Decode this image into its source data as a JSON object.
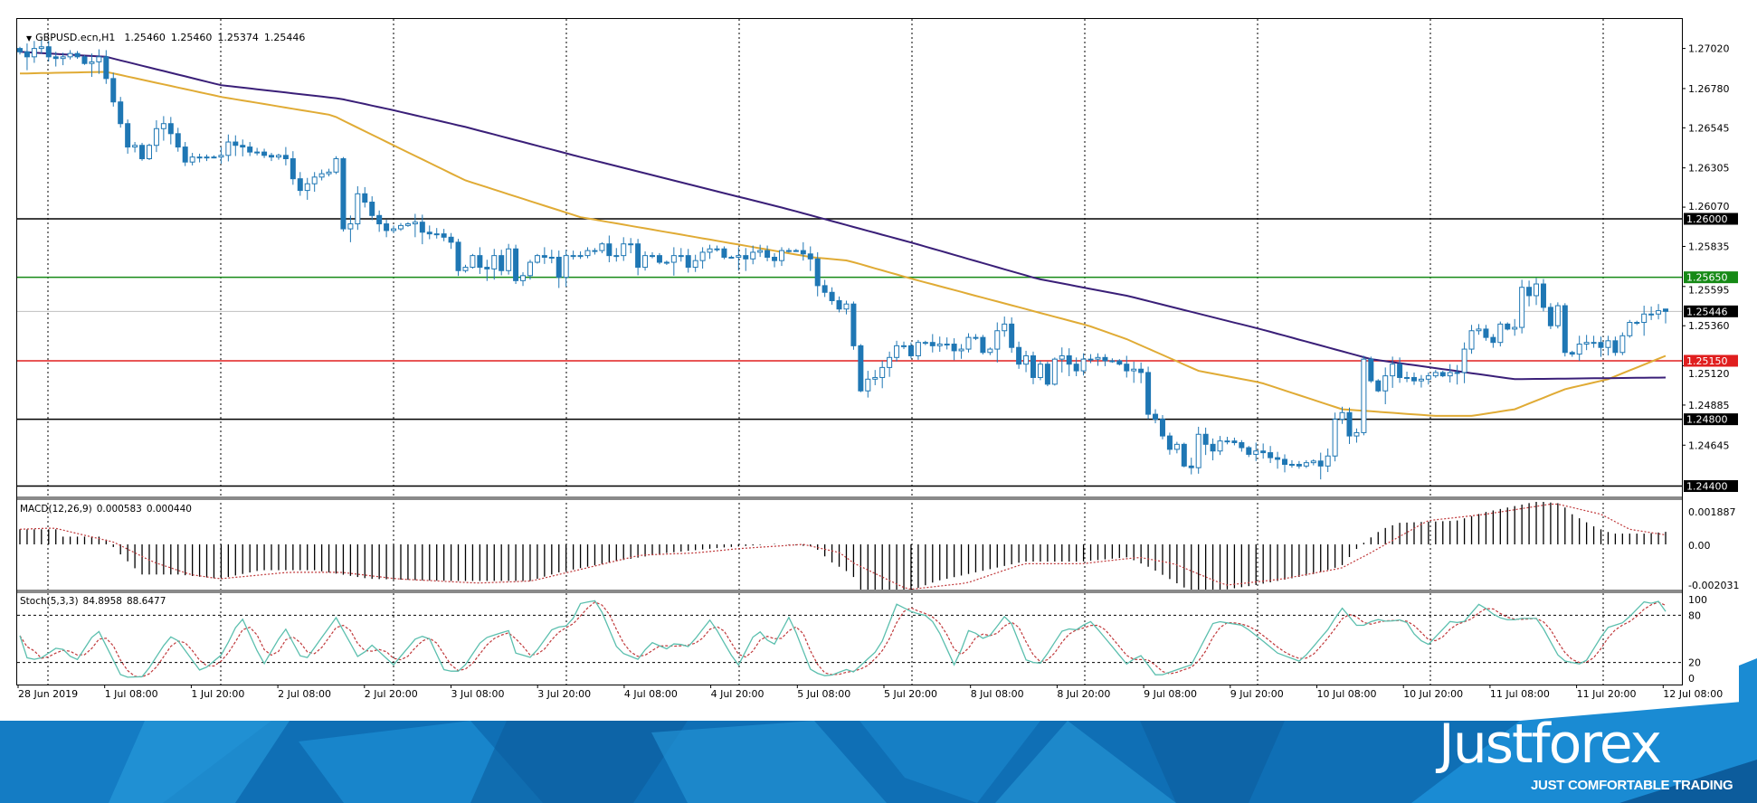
{
  "header": {
    "symbol": "GBPUSD.ecn,H1",
    "open": "1.25460",
    "high": "1.25460",
    "low": "1.25374",
    "close": "1.25446",
    "menu_icon": "triangle-down-icon"
  },
  "branding": {
    "logo": "Justforex",
    "tagline": "JUST COMFORTABLE TRADING"
  },
  "colors": {
    "bull_body": "#ffffff",
    "candle": "#1f77b4",
    "ma_slow": "#3a1f78",
    "ma_fast": "#e0ab35",
    "macd_hist": "#000000",
    "signal": "#c0393b",
    "stoch_main": "#5bbfae",
    "banner": "#0f6fb5"
  },
  "chart_data": [
    {
      "type": "candlestick",
      "symbol": "GBPUSD.ecn",
      "timeframe": "H1",
      "price_ticks": [
        "1.27020",
        "1.26780",
        "1.26545",
        "1.26305",
        "1.26070",
        "1.25835",
        "1.25595",
        "1.25360",
        "1.25120",
        "1.24885",
        "1.24645"
      ],
      "time_labels": [
        "28 Jun 2019",
        "1 Jul 08:00",
        "1 Jul 20:00",
        "2 Jul 08:00",
        "2 Jul 20:00",
        "3 Jul 08:00",
        "3 Jul 20:00",
        "4 Jul 08:00",
        "4 Jul 20:00",
        "5 Jul 08:00",
        "5 Jul 20:00",
        "8 Jul 08:00",
        "8 Jul 20:00",
        "9 Jul 08:00",
        "9 Jul 20:00",
        "10 Jul 08:00",
        "10 Jul 20:00",
        "11 Jul 08:00",
        "11 Jul 20:00",
        "12 Jul 08:00"
      ],
      "hlines": [
        {
          "price": "1.26000",
          "color": "#000000"
        },
        {
          "price": "1.25650",
          "color": "#168a16"
        },
        {
          "price": "1.25150",
          "color": "#e01e1e"
        },
        {
          "price": "1.24800",
          "color": "#000000"
        },
        {
          "price": "1.24400",
          "color": "#000000"
        }
      ],
      "bid_line": {
        "price": "1.25446",
        "color": "#c0c0c0"
      },
      "last_bar": {
        "open": 1.2546,
        "high": 1.2546,
        "low": 1.25374,
        "close": 1.25446
      },
      "closes": [
        1.27,
        1.2697,
        1.2702,
        1.2703,
        1.2697,
        1.2696,
        1.2697,
        1.2699,
        1.2697,
        1.2693,
        1.2694,
        1.2697,
        1.2684,
        1.267,
        1.2657,
        1.2643,
        1.2644,
        1.2636,
        1.2644,
        1.2654,
        1.2657,
        1.2651,
        1.2643,
        1.2634,
        1.2637,
        1.2637,
        1.2637,
        1.2637,
        1.2638,
        1.2646,
        1.2644,
        1.2643,
        1.264,
        1.264,
        1.2638,
        1.2637,
        1.2638,
        1.2636,
        1.2624,
        1.2617,
        1.2621,
        1.2625,
        1.2627,
        1.2628,
        1.2636,
        1.2594,
        1.2597,
        1.2615,
        1.261,
        1.2602,
        1.2597,
        1.2593,
        1.2594,
        1.2596,
        1.2597,
        1.2598,
        1.2592,
        1.2591,
        1.2591,
        1.2589,
        1.2586,
        1.2569,
        1.2571,
        1.2578,
        1.2571,
        1.257,
        1.2578,
        1.2569,
        1.2582,
        1.2563,
        1.2566,
        1.2574,
        1.2578,
        1.2577,
        1.2577,
        1.2565,
        1.2578,
        1.2578,
        1.2578,
        1.2581,
        1.2581,
        1.2585,
        1.2578,
        1.2578,
        1.2585,
        1.2585,
        1.2571,
        1.2578,
        1.2578,
        1.2574,
        1.2574,
        1.2578,
        1.2578,
        1.2571,
        1.2575,
        1.258,
        1.2582,
        1.2582,
        1.2577,
        1.2577,
        1.2578,
        1.2576,
        1.258,
        1.2581,
        1.2577,
        1.2575,
        1.2581,
        1.2581,
        1.2581,
        1.2579,
        1.2576,
        1.256,
        1.2556,
        1.2551,
        1.2546,
        1.2549,
        1.2524,
        1.2497,
        1.2504,
        1.2505,
        1.2511,
        1.2517,
        1.2524,
        1.2524,
        1.2518,
        1.2526,
        1.2526,
        1.2524,
        1.2525,
        1.2525,
        1.2521,
        1.2522,
        1.2529,
        1.2529,
        1.252,
        1.2522,
        1.2533,
        1.2537,
        1.2523,
        1.2513,
        1.2518,
        1.2505,
        1.2513,
        1.2501,
        1.2516,
        1.2518,
        1.2513,
        1.2509,
        1.2516,
        1.2516,
        1.2517,
        1.2515,
        1.2515,
        1.2513,
        1.2509,
        1.251,
        1.2508,
        1.2483,
        1.248,
        1.247,
        1.2462,
        1.2465,
        1.2452,
        1.2451,
        1.2471,
        1.2465,
        1.2461,
        1.2467,
        1.2467,
        1.2466,
        1.2463,
        1.2459,
        1.2461,
        1.246,
        1.2457,
        1.2456,
        1.2453,
        1.2453,
        1.2452,
        1.2454,
        1.2455,
        1.2452,
        1.2458,
        1.248,
        1.2484,
        1.247,
        1.2472,
        1.2516,
        1.2503,
        1.2497,
        1.2506,
        1.2513,
        1.2505,
        1.2505,
        1.2503,
        1.2504,
        1.2506,
        1.2508,
        1.2506,
        1.2508,
        1.2508,
        1.2522,
        1.2533,
        1.2534,
        1.2529,
        1.2526,
        1.2537,
        1.2534,
        1.2535,
        1.2559,
        1.2554,
        1.2561,
        1.2547,
        1.2536,
        1.2548,
        1.252,
        1.2519,
        1.2525,
        1.2526,
        1.2526,
        1.2523,
        1.2527,
        1.252,
        1.253,
        1.2538,
        1.2538,
        1.2543,
        1.2543,
        1.2545,
        1.25446
      ],
      "ma_slow": [
        [
          0,
          1.27
        ],
        [
          12,
          1.2697
        ],
        [
          28,
          1.268
        ],
        [
          44.5,
          1.2672
        ],
        [
          52,
          1.2665
        ],
        [
          62,
          1.2655
        ],
        [
          78,
          1.2637
        ],
        [
          106.7,
          1.2606
        ],
        [
          124.7,
          1.2585
        ],
        [
          141.7,
          1.2564
        ],
        [
          154,
          1.2554
        ],
        [
          172.6,
          1.2534
        ],
        [
          188,
          1.2516
        ],
        [
          208,
          1.2504
        ],
        [
          229,
          1.2505
        ]
      ],
      "ma_fast": [
        [
          0,
          1.2687
        ],
        [
          12,
          1.2688
        ],
        [
          28,
          1.2673
        ],
        [
          43.5,
          1.2662
        ],
        [
          52,
          1.2644
        ],
        [
          62,
          1.2623
        ],
        [
          78,
          1.2601
        ],
        [
          110.2,
          1.2577
        ],
        [
          115.2,
          1.2575
        ],
        [
          124.2,
          1.2564
        ],
        [
          134.7,
          1.2552
        ],
        [
          148.7,
          1.2536
        ],
        [
          154,
          1.2528
        ],
        [
          164,
          1.2509
        ],
        [
          172.6,
          1.2502
        ],
        [
          184,
          1.2486
        ],
        [
          197,
          1.2482
        ],
        [
          202,
          1.2482
        ],
        [
          208,
          1.2486
        ],
        [
          215,
          1.2498
        ],
        [
          221,
          1.2504
        ],
        [
          229,
          1.2518
        ]
      ]
    },
    {
      "type": "bar",
      "name": "MACD(12,26,9)",
      "main_value": "0.000583",
      "signal_value": "0.000440",
      "axis_ticks": [
        "0.001887",
        "0.00",
        "-0.002031"
      ],
      "range": [
        -0.002031,
        0.001887
      ],
      "histogram": [
        [
          0,
          0.0007
        ],
        [
          5,
          0.0007
        ],
        [
          6,
          0.00036
        ],
        [
          11.6,
          0.00036
        ],
        [
          13.8,
          -0.0004
        ],
        [
          16.9,
          -0.0014
        ],
        [
          22,
          -0.0014
        ],
        [
          27.8,
          -0.0016
        ],
        [
          33.5,
          -0.0012
        ],
        [
          41,
          -0.0012
        ],
        [
          48.6,
          -0.0016
        ],
        [
          60,
          -0.0017
        ],
        [
          71,
          -0.0017
        ],
        [
          75,
          -0.0013
        ],
        [
          82.6,
          -0.0008
        ],
        [
          90,
          -0.0004
        ],
        [
          97.7,
          -0.00015
        ],
        [
          105,
          2e-05
        ],
        [
          110.5,
          -0.0001
        ],
        [
          112.8,
          -0.0008
        ],
        [
          115.8,
          -0.0014
        ],
        [
          117,
          -0.0021
        ],
        [
          118.8,
          -0.0023
        ],
        [
          123.6,
          -0.0022
        ],
        [
          127.6,
          -0.0017
        ],
        [
          135.7,
          -0.0011
        ],
        [
          139.7,
          -0.0008
        ],
        [
          147.7,
          -0.0008
        ],
        [
          154.1,
          -0.0006
        ],
        [
          157.4,
          -0.0011
        ],
        [
          163,
          -0.0022
        ],
        [
          167.8,
          -0.0021
        ],
        [
          171.8,
          -0.0019
        ],
        [
          179.8,
          -0.0014
        ],
        [
          183.9,
          -0.001
        ],
        [
          186.3,
          -0.0001
        ],
        [
          189.5,
          0.0007
        ],
        [
          191.9,
          0.001
        ],
        [
          199.9,
          0.0011
        ],
        [
          203.9,
          0.0015
        ],
        [
          211.2,
          0.002
        ],
        [
          214.4,
          0.0019
        ],
        [
          216,
          0.0014
        ],
        [
          219.2,
          0.0008
        ],
        [
          221.6,
          0.0005
        ],
        [
          226.4,
          0.0005
        ],
        [
          229,
          0.000583
        ]
      ],
      "signal": [
        [
          0,
          0.0007
        ],
        [
          4.8,
          0.00076
        ],
        [
          13.1,
          0.0001
        ],
        [
          18.4,
          -0.0008
        ],
        [
          23.7,
          -0.0014
        ],
        [
          27.8,
          -0.0016
        ],
        [
          37.3,
          -0.0013
        ],
        [
          44.8,
          -0.0013
        ],
        [
          52.4,
          -0.0016
        ],
        [
          63.7,
          -0.0018
        ],
        [
          71.2,
          -0.0017
        ],
        [
          78.8,
          -0.0011
        ],
        [
          86.3,
          -0.0005
        ],
        [
          93.9,
          -0.0004
        ],
        [
          99.9,
          -0.0002
        ],
        [
          109,
          0
        ],
        [
          114.3,
          -0.0004
        ],
        [
          115.6,
          -0.0008
        ],
        [
          123.6,
          -0.0021
        ],
        [
          131.7,
          -0.0018
        ],
        [
          139.7,
          -0.0009
        ],
        [
          147.7,
          -0.0009
        ],
        [
          155.8,
          -0.0006
        ],
        [
          160.6,
          -0.0009
        ],
        [
          167.8,
          -0.0019
        ],
        [
          175.8,
          -0.0016
        ],
        [
          183.9,
          -0.0011
        ],
        [
          187.9,
          -0.0004
        ],
        [
          192.7,
          0.0005
        ],
        [
          195.9,
          0.0011
        ],
        [
          203.9,
          0.0014
        ],
        [
          213.6,
          0.0019
        ],
        [
          220,
          0.0014
        ],
        [
          224,
          0.0007
        ],
        [
          229,
          0.00044
        ]
      ]
    },
    {
      "type": "line",
      "name": "Stoch(5,3,3)",
      "main_value": "84.8958",
      "signal_value": "88.6477",
      "axis_ticks": [
        "100",
        "80",
        "20",
        "0"
      ],
      "levels": [
        80,
        20
      ],
      "range": [
        0,
        100
      ],
      "signal_period": 3,
      "main": [
        [
          0,
          54
        ],
        [
          1,
          26
        ],
        [
          2.5,
          23
        ],
        [
          5.5,
          41
        ],
        [
          7.8,
          21
        ],
        [
          10.8,
          63
        ],
        [
          14.2,
          1
        ],
        [
          17.2,
          2
        ],
        [
          20.6,
          50
        ],
        [
          21.4,
          55
        ],
        [
          25.2,
          8
        ],
        [
          28.2,
          31
        ],
        [
          30.8,
          79
        ],
        [
          33.9,
          17
        ],
        [
          36.9,
          64
        ],
        [
          39.5,
          20
        ],
        [
          44,
          77
        ],
        [
          47.1,
          26
        ],
        [
          49,
          42
        ],
        [
          52,
          17
        ],
        [
          55.4,
          54
        ],
        [
          56.9,
          52
        ],
        [
          59.1,
          9
        ],
        [
          61.4,
          9
        ],
        [
          64.4,
          50
        ],
        [
          66.7,
          57
        ],
        [
          68.2,
          61
        ],
        [
          69,
          32
        ],
        [
          71.2,
          26
        ],
        [
          74.2,
          64
        ],
        [
          76.5,
          67
        ],
        [
          78,
          95
        ],
        [
          80.3,
          99
        ],
        [
          83.3,
          34
        ],
        [
          86,
          24
        ],
        [
          87.8,
          46
        ],
        [
          90.1,
          37
        ],
        [
          91.2,
          45
        ],
        [
          93.1,
          40
        ],
        [
          96.1,
          75
        ],
        [
          99.9,
          15
        ],
        [
          102.6,
          63
        ],
        [
          104.8,
          40
        ],
        [
          107.1,
          79
        ],
        [
          110.1,
          9
        ],
        [
          112.4,
          2
        ],
        [
          115,
          11
        ],
        [
          116,
          8
        ],
        [
          119.6,
          38
        ],
        [
          122,
          94
        ],
        [
          124.4,
          83
        ],
        [
          126.4,
          79
        ],
        [
          127.6,
          65
        ],
        [
          130.1,
          15
        ],
        [
          132.1,
          63
        ],
        [
          134.1,
          50
        ],
        [
          135.7,
          58
        ],
        [
          136.5,
          80
        ],
        [
          137.7,
          76
        ],
        [
          140.1,
          21
        ],
        [
          142.1,
          19
        ],
        [
          145.3,
          64
        ],
        [
          146.9,
          61
        ],
        [
          148.9,
          73
        ],
        [
          150.1,
          61
        ],
        [
          154.1,
          17
        ],
        [
          155.8,
          31
        ],
        [
          158.2,
          2
        ],
        [
          161.4,
          12
        ],
        [
          163,
          17
        ],
        [
          166.2,
          73
        ],
        [
          170.2,
          67
        ],
        [
          172.6,
          50
        ],
        [
          175,
          32
        ],
        [
          178.2,
          21
        ],
        [
          182.2,
          64
        ],
        [
          183.9,
          90
        ],
        [
          186.3,
          64
        ],
        [
          188.7,
          75
        ],
        [
          190.3,
          72
        ],
        [
          192.7,
          75
        ],
        [
          194.3,
          52
        ],
        [
          195.9,
          42
        ],
        [
          199.1,
          73
        ],
        [
          200.7,
          69
        ],
        [
          203.1,
          95
        ],
        [
          205.5,
          78
        ],
        [
          207.5,
          73
        ],
        [
          208.7,
          76
        ],
        [
          211.2,
          76
        ],
        [
          214.4,
          23
        ],
        [
          217.6,
          17
        ],
        [
          220.8,
          64
        ],
        [
          223.2,
          71
        ],
        [
          226,
          97
        ],
        [
          227.2,
          95
        ],
        [
          228.4,
          99
        ],
        [
          229,
          84.8958
        ]
      ]
    }
  ]
}
